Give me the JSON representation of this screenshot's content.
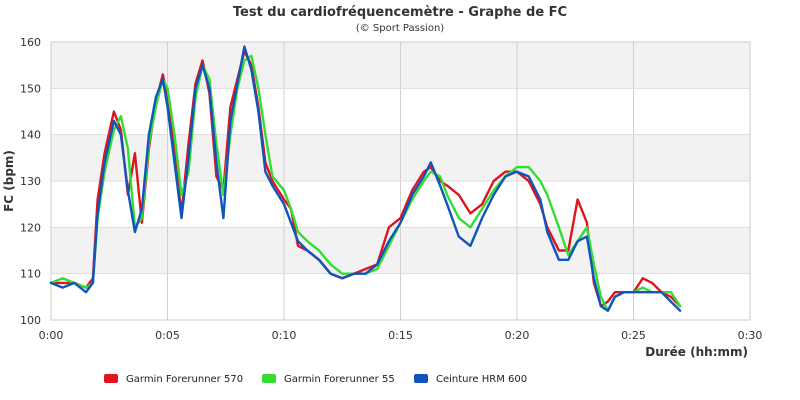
{
  "chart_data": {
    "type": "line",
    "title": "Test du cardiofréquencemètre - Graphe de FC",
    "subtitle": "(© Sport Passion)",
    "xlabel": "Durée (hh:mm)",
    "ylabel": "FC (bpm)",
    "xlim": [
      0,
      30
    ],
    "ylim": [
      100,
      160
    ],
    "x_ticks": [
      0,
      5,
      10,
      15,
      20,
      25,
      30
    ],
    "x_tick_labels": [
      "0:00",
      "0:05",
      "0:10",
      "0:15",
      "0:20",
      "0:25",
      "0:30"
    ],
    "y_ticks": [
      100,
      110,
      120,
      130,
      140,
      150,
      160
    ],
    "y_tick_labels": [
      "100",
      "110",
      "120",
      "130",
      "140",
      "150",
      "160"
    ],
    "grid": true,
    "legend_position": "bottom",
    "series": [
      {
        "name": "Garmin Forerunner 570",
        "color": "#e0141e",
        "x": [
          0,
          0.5,
          1,
          1.5,
          1.8,
          2.0,
          2.3,
          2.7,
          3.0,
          3.3,
          3.6,
          3.9,
          4.2,
          4.5,
          4.8,
          5.0,
          5.3,
          5.6,
          5.9,
          6.2,
          6.5,
          6.8,
          7.1,
          7.4,
          7.7,
          8.0,
          8.3,
          8.6,
          8.9,
          9.2,
          9.5,
          10.0,
          10.3,
          10.6,
          11.0,
          11.5,
          12.0,
          12.5,
          13.0,
          13.5,
          14.0,
          14.5,
          15.0,
          15.5,
          16.0,
          16.3,
          16.7,
          17.0,
          17.5,
          18.0,
          18.5,
          19.0,
          19.5,
          20.0,
          20.5,
          21.0,
          21.3,
          21.8,
          22.2,
          22.6,
          23.0,
          23.3,
          23.6,
          23.9,
          24.2,
          24.6,
          25.0,
          25.4,
          25.8,
          26.2,
          26.6,
          27.0
        ],
        "values": [
          108,
          108,
          108,
          107,
          109,
          126,
          136,
          145,
          141,
          127,
          136,
          121,
          137,
          147,
          153,
          148,
          136,
          123,
          138,
          151,
          156,
          149,
          131,
          128,
          146,
          152,
          158,
          155,
          146,
          134,
          130,
          126,
          124,
          116,
          115,
          113,
          110,
          109,
          110,
          111,
          112,
          120,
          122,
          128,
          132,
          133,
          130,
          129,
          127,
          123,
          125,
          130,
          132,
          132,
          130,
          125,
          120,
          115,
          115,
          126,
          121,
          108,
          103,
          104,
          106,
          106,
          106,
          109,
          108,
          106,
          105,
          103
        ]
      },
      {
        "name": "Garmin Forerunner 55",
        "color": "#33dd33",
        "x": [
          0,
          0.5,
          1,
          1.5,
          1.8,
          2.0,
          2.3,
          2.7,
          3.0,
          3.3,
          3.6,
          3.9,
          4.2,
          4.5,
          4.8,
          5.0,
          5.3,
          5.6,
          5.9,
          6.2,
          6.5,
          6.8,
          7.1,
          7.4,
          7.7,
          8.0,
          8.3,
          8.6,
          8.9,
          9.2,
          9.5,
          10.0,
          10.3,
          10.6,
          11.0,
          11.5,
          12.0,
          12.5,
          13.0,
          13.5,
          14.0,
          14.5,
          15.0,
          15.5,
          16.0,
          16.3,
          16.7,
          17.0,
          17.5,
          18.0,
          18.5,
          19.0,
          19.5,
          20.0,
          20.5,
          21.0,
          21.3,
          21.8,
          22.2,
          22.6,
          23.0,
          23.3,
          23.6,
          23.9,
          24.2,
          24.6,
          25.0,
          25.4,
          25.8,
          26.2,
          26.6,
          27.0
        ],
        "values": [
          108,
          109,
          108,
          107,
          108,
          122,
          132,
          141,
          144,
          137,
          120,
          122,
          138,
          146,
          152,
          150,
          140,
          127,
          132,
          148,
          155,
          152,
          138,
          127,
          140,
          150,
          156,
          157,
          150,
          140,
          131,
          128,
          124,
          119,
          117,
          115,
          112,
          110,
          110,
          110,
          111,
          116,
          121,
          126,
          130,
          132,
          131,
          127,
          122,
          120,
          124,
          128,
          131,
          133,
          133,
          130,
          127,
          120,
          114,
          117,
          120,
          112,
          105,
          102,
          105,
          106,
          106,
          107,
          106,
          106,
          106,
          103
        ]
      },
      {
        "name": "Ceinture HRM 600",
        "color": "#1155bb",
        "x": [
          0,
          0.5,
          1,
          1.5,
          1.8,
          2.0,
          2.3,
          2.7,
          3.0,
          3.3,
          3.6,
          3.9,
          4.2,
          4.5,
          4.8,
          5.0,
          5.3,
          5.6,
          5.9,
          6.2,
          6.5,
          6.8,
          7.1,
          7.4,
          7.7,
          8.0,
          8.3,
          8.6,
          8.9,
          9.2,
          9.5,
          10.0,
          10.3,
          10.6,
          11.0,
          11.5,
          12.0,
          12.5,
          13.0,
          13.5,
          14.0,
          14.5,
          15.0,
          15.5,
          16.0,
          16.3,
          16.7,
          17.0,
          17.5,
          18.0,
          18.5,
          19.0,
          19.5,
          20.0,
          20.5,
          21.0,
          21.3,
          21.8,
          22.2,
          22.6,
          23.0,
          23.3,
          23.6,
          23.9,
          24.2,
          24.6,
          25.0,
          25.4,
          25.8,
          26.2,
          26.6,
          27.0
        ],
        "values": [
          108,
          107,
          108,
          106,
          108,
          123,
          134,
          143,
          140,
          128,
          119,
          124,
          140,
          148,
          152,
          146,
          134,
          122,
          135,
          150,
          155,
          150,
          134,
          122,
          143,
          151,
          159,
          154,
          145,
          132,
          129,
          125,
          121,
          117,
          115,
          113,
          110,
          109,
          110,
          110,
          112,
          117,
          121,
          127,
          131,
          134,
          129,
          125,
          118,
          116,
          122,
          127,
          131,
          132,
          131,
          126,
          119,
          113,
          113,
          117,
          118,
          109,
          103,
          102,
          105,
          106,
          106,
          106,
          106,
          106,
          104,
          102
        ]
      }
    ]
  }
}
